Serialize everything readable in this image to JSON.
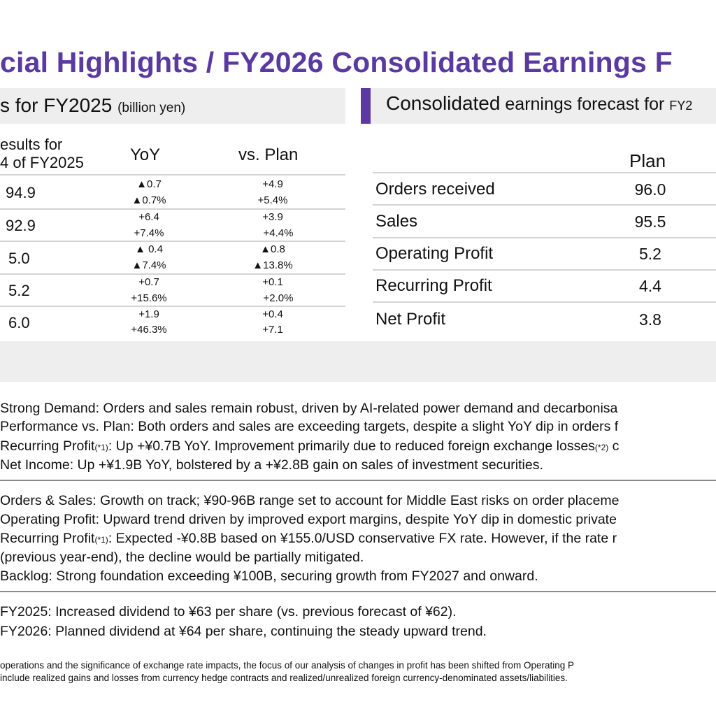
{
  "title": "cial Highlights / FY2026 Consolidated Earnings F",
  "left_table": {
    "header": "s for FY2025",
    "header_unit": "(billion yen)",
    "col_results": "esults for\n4 of FY2025",
    "col_yoy": "YoY",
    "col_plan": "vs. Plan",
    "rows": [
      {
        "result": "94.9",
        "yoy_abs": "▲0.7",
        "yoy_pct": "▲0.7%",
        "plan_abs": "+4.9",
        "plan_pct": "+5.4%"
      },
      {
        "result": "92.9",
        "yoy_abs": "+6.4",
        "yoy_pct": "+7.4%",
        "plan_abs": "+3.9",
        "plan_pct": "+4.4%"
      },
      {
        "result": "5.0",
        "yoy_abs": "▲ 0.4",
        "yoy_pct": "▲7.4%",
        "plan_abs": "▲0.8",
        "plan_pct": "▲13.8%"
      },
      {
        "result": "5.2",
        "yoy_abs": "+0.7",
        "yoy_pct": "+15.6%",
        "plan_abs": "+0.1",
        "plan_pct": "+2.0%"
      },
      {
        "result": "6.0",
        "yoy_abs": "+1.9",
        "yoy_pct": "+46.3%",
        "plan_abs": "+0.4",
        "plan_pct": "+7.1"
      }
    ]
  },
  "right_table": {
    "header_main": "Consolidated",
    "header_rest": " earnings forecast for ",
    "header_tail": "FY2",
    "col_plan": "Plan",
    "rows": [
      {
        "label": "Orders received",
        "plan": "96.0"
      },
      {
        "label": "Sales",
        "plan": "95.5"
      },
      {
        "label": "Operating Profit",
        "plan": "5.2"
      },
      {
        "label": "Recurring Profit",
        "plan": "4.4"
      },
      {
        "label": "Net Profit",
        "plan": "3.8"
      }
    ]
  },
  "section1": [
    {
      "text": "Strong Demand: Orders and sales remain robust, driven by AI-related power demand and decarbonisa"
    },
    {
      "text": "Performance vs. Plan: Both orders and sales are exceeding targets, despite a slight YoY dip in orders f"
    },
    {
      "pre": "Recurring Profit",
      "sup": "(*1)",
      "post": ": Up +¥0.7B YoY. Improvement primarily due to reduced foreign exchange losses",
      "sup2": "(*2)",
      "tail": " c"
    },
    {
      "text": "Net Income: Up +¥1.9B YoY, bolstered by a +¥2.8B gain on sales of investment securities."
    }
  ],
  "section2": [
    {
      "text": "Orders & Sales: Growth on track; ¥90-96B range set to account for Middle East risks on order placeme"
    },
    {
      "text": "Operating Profit: Upward trend driven by improved export margins, despite YoY dip in domestic private"
    },
    {
      "pre": "Recurring Profit",
      "sup": "(*1)",
      "post": ": Expected -¥0.8B based on ¥155.0/USD conservative FX rate. However, if the rate r"
    },
    {
      "text": " (previous year-end), the decline would be partially mitigated."
    },
    {
      "text": "Backlog: Strong foundation exceeding ¥100B, securing growth from FY2027 and onward."
    }
  ],
  "section3": [
    {
      "text": "FY2025: Increased dividend to ¥63 per share (vs. previous forecast of ¥62)."
    },
    {
      "text": "FY2026: Planned dividend at ¥64 per share, continuing the steady upward trend."
    }
  ],
  "footnotes": [
    " operations and the significance of exchange rate impacts, the focus of our analysis of changes in profit has been shifted from Operating P",
    "  include realized gains and losses from currency hedge contracts and realized/unrealized foreign currency-denominated assets/liabilities."
  ],
  "colors": {
    "accent": "#5a3aa0",
    "panel": "#eeeeee"
  }
}
